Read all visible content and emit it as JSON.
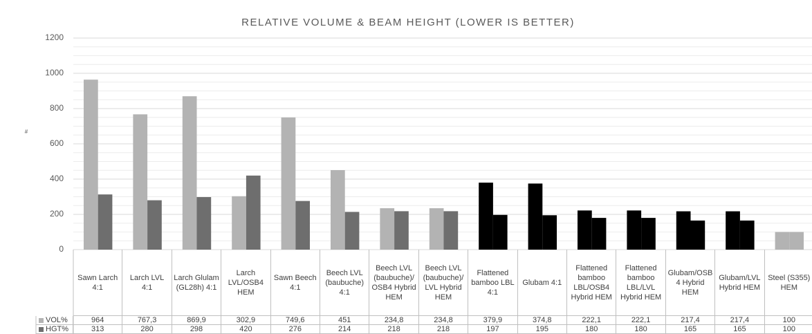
{
  "chart_data": {
    "type": "bar",
    "title": "RELATIVE VOLUME & BEAM HEIGHT (LOWER IS BETTER)",
    "y_label": "#",
    "categories": [
      "Sawn Larch 4:1",
      "Larch LVL 4:1",
      "Larch Glulam (GL28h) 4:1",
      "Larch LVL/OSB4 HEM",
      "Sawn Beech 4:1",
      "Beech LVL (baubuche) 4:1",
      "Beech LVL (baubuche)/ OSB4 Hybrid HEM",
      "Beech LVL (baubuche)/ LVL Hybrid HEM",
      "Flattened bamboo LBL 4:1",
      "Glubam 4:1",
      "Flattened bamboo LBL/OSB4 Hybrid HEM",
      "Flattened bamboo LBL/LVL Hybrid HEM",
      "Glubam/OSB4 Hybrid HEM",
      "Glubam/LVL Hybrid HEM",
      "Steel (S355) HEM"
    ],
    "series": [
      {
        "name": "VOL%",
        "color": "#b3b3b3",
        "values": [
          964,
          767.3,
          869.9,
          302.9,
          749.6,
          451,
          234.8,
          234.8,
          379.9,
          374.8,
          222.1,
          222.1,
          217.4,
          217.4,
          100
        ],
        "value_labels": [
          "964",
          "767,3",
          "869,9",
          "302,9",
          "749,6",
          "451",
          "234,8",
          "234,8",
          "379,9",
          "374,8",
          "222,1",
          "222,1",
          "217,4",
          "217,4",
          "100"
        ],
        "colors": [
          "#b3b3b3",
          "#b3b3b3",
          "#b3b3b3",
          "#b3b3b3",
          "#b3b3b3",
          "#b3b3b3",
          "#b3b3b3",
          "#b3b3b3",
          "#000000",
          "#000000",
          "#000000",
          "#000000",
          "#000000",
          "#000000",
          "#b3b3b3"
        ]
      },
      {
        "name": "HGT%",
        "color": "#6e6e6e",
        "values": [
          313,
          280,
          298,
          420,
          276,
          214,
          218,
          218,
          197,
          195,
          180,
          180,
          165,
          165,
          100
        ],
        "colors": [
          "#6e6e6e",
          "#6e6e6e",
          "#6e6e6e",
          "#6e6e6e",
          "#6e6e6e",
          "#6e6e6e",
          "#6e6e6e",
          "#6e6e6e",
          "#000000",
          "#000000",
          "#000000",
          "#000000",
          "#000000",
          "#000000",
          "#b3b3b3"
        ]
      }
    ],
    "ylim": [
      0,
      1200
    ],
    "yticks": [
      0,
      200,
      400,
      600,
      800,
      1000,
      1200
    ],
    "grid": true
  }
}
